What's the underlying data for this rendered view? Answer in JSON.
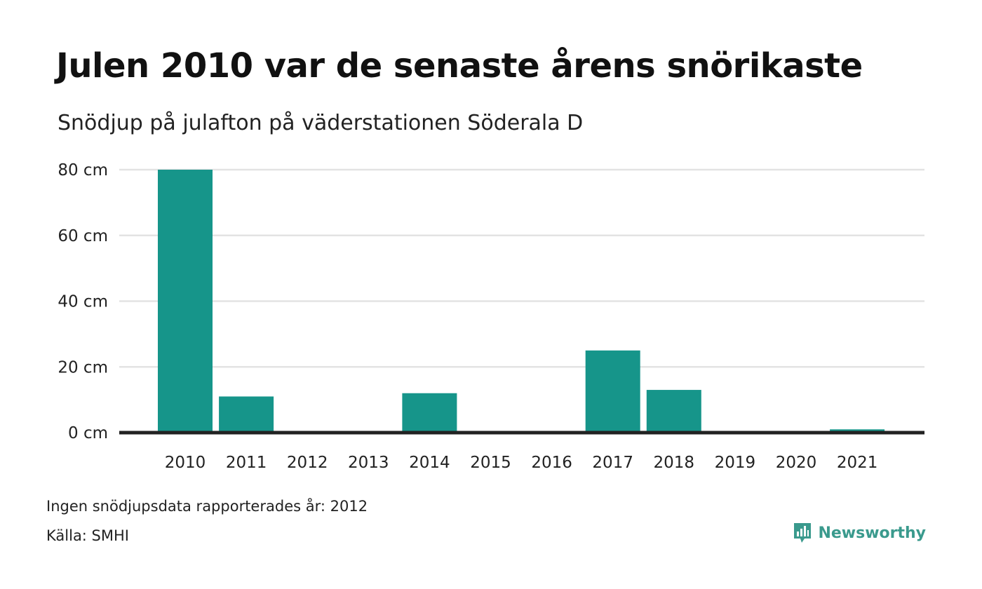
{
  "title": "Julen 2010 var de senaste årens snörikaste",
  "subtitle": "Snödjup på julafton på väderstationen Söderala D",
  "note": "Ingen snödjupsdata rapporterades år: 2012",
  "source": "Källa: SMHI",
  "brand": {
    "name": "Newsworthy",
    "icon": "newsworthy-logo-icon",
    "color": "#3a9a8d"
  },
  "chart_data": {
    "type": "bar",
    "categories": [
      "2010",
      "2011",
      "2012",
      "2013",
      "2014",
      "2015",
      "2016",
      "2017",
      "2018",
      "2019",
      "2020",
      "2021"
    ],
    "values": [
      80,
      11,
      null,
      0,
      12,
      0,
      0,
      25,
      13,
      0,
      0,
      1
    ],
    "unit": "cm",
    "ylim": [
      0,
      80
    ],
    "yticks": [
      0,
      20,
      40,
      60,
      80
    ],
    "ytick_labels": [
      "0 cm",
      "20 cm",
      "40 cm",
      "60 cm",
      "80 cm"
    ],
    "grid": true,
    "bar_color": "#16958a",
    "gridline_color": "#e3e3e3",
    "baseline_color": "#222222"
  }
}
